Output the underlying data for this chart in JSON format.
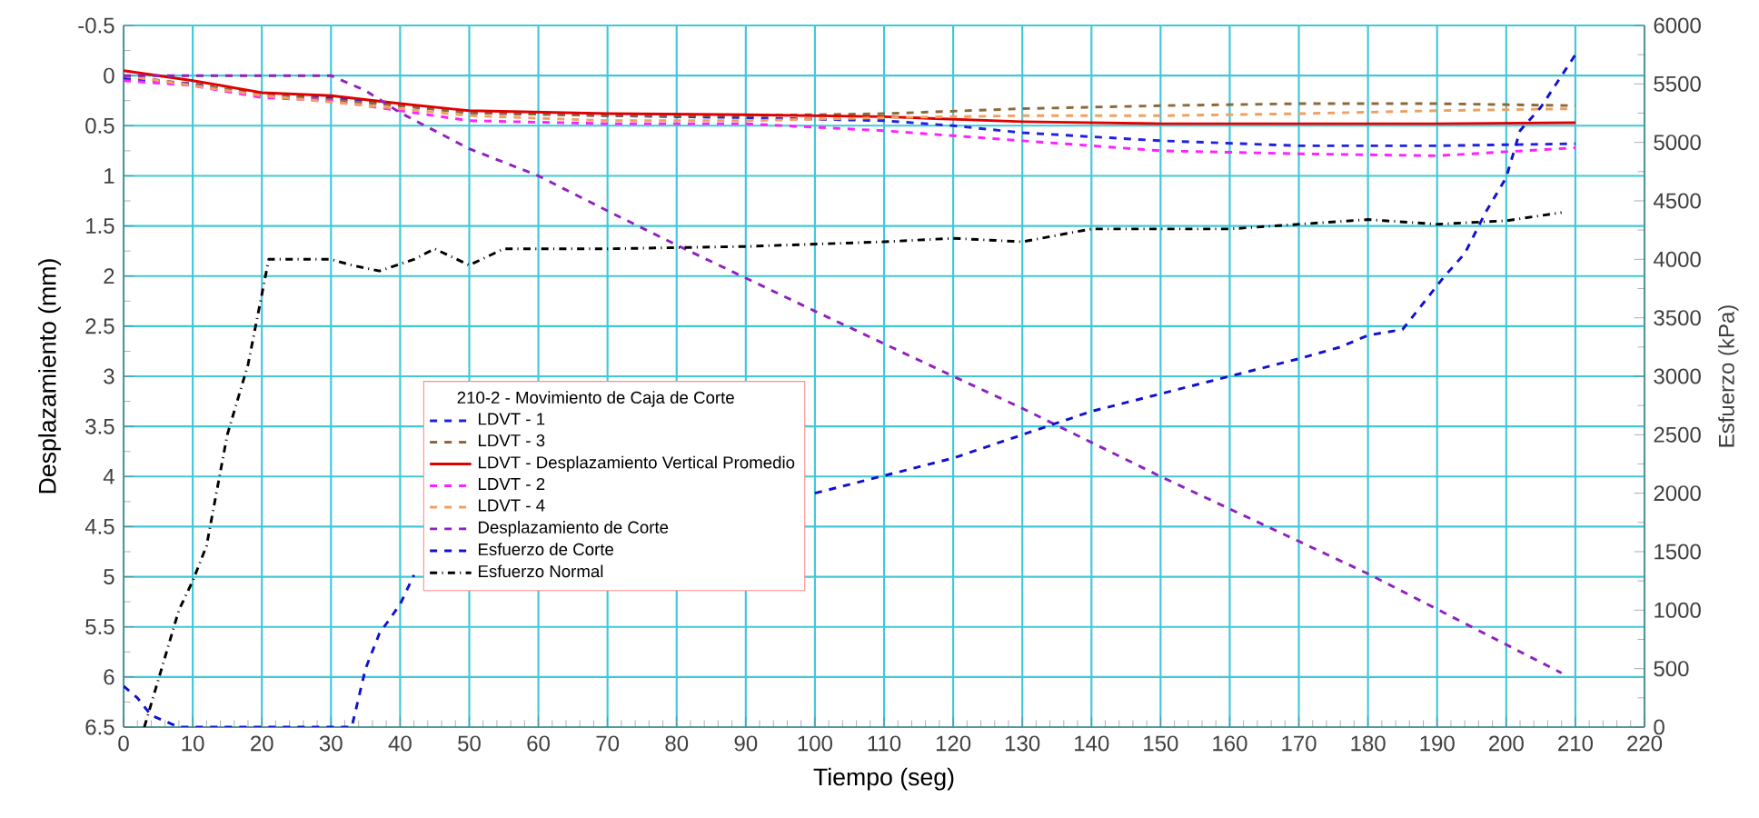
{
  "chart_data": {
    "type": "line",
    "legend_title": "210-2 - Movimiento de Caja de Corte",
    "xlabel": "Tiempo (seg)",
    "ylabel": "Desplazamiento (mm)",
    "y2label": "Esfuerzo (kPa)",
    "xlim": [
      0,
      220
    ],
    "xticks": [
      0,
      10,
      20,
      30,
      40,
      50,
      60,
      70,
      80,
      90,
      100,
      110,
      120,
      130,
      140,
      150,
      160,
      170,
      180,
      190,
      200,
      210,
      220
    ],
    "ylim": [
      6.5,
      -0.5
    ],
    "yticks": [
      -0.5,
      0,
      0.5,
      1,
      1.5,
      2,
      2.5,
      3,
      3.5,
      4,
      4.5,
      5,
      5.5,
      6,
      6.5
    ],
    "y2lim": [
      0,
      6000
    ],
    "y2ticks": [
      0,
      500,
      1000,
      1500,
      2000,
      2500,
      3000,
      3500,
      4000,
      4500,
      5000,
      5500,
      6000
    ],
    "grid": true,
    "legend": "bottom left",
    "marker": "none",
    "series": [
      {
        "name": "LDVT - 1",
        "color": "#2020e0",
        "line_style": "dashed",
        "x": [
          0,
          10,
          20,
          30,
          40,
          50,
          70,
          90,
          110,
          120,
          130,
          150,
          170,
          190,
          210
        ],
        "values": [
          0.03,
          0.08,
          0.2,
          0.22,
          0.3,
          0.37,
          0.4,
          0.42,
          0.45,
          0.5,
          0.57,
          0.65,
          0.7,
          0.7,
          0.68
        ]
      },
      {
        "name": "LDVT - 3",
        "color": "#8b6a3a",
        "line_style": "dashed",
        "x": [
          0,
          20,
          40,
          50,
          70,
          90,
          110,
          130,
          150,
          170,
          190,
          210
        ],
        "values": [
          0,
          0.18,
          0.3,
          0.37,
          0.4,
          0.4,
          0.38,
          0.33,
          0.3,
          0.28,
          0.28,
          0.3
        ]
      },
      {
        "name": "LDVT - Desplazamiento Vertical Promedio",
        "color": "#e00000",
        "line_style": "solid",
        "x": [
          0,
          10,
          20,
          30,
          40,
          50,
          70,
          90,
          110,
          130,
          150,
          170,
          190,
          210
        ],
        "values": [
          -0.05,
          0.05,
          0.17,
          0.2,
          0.28,
          0.35,
          0.38,
          0.39,
          0.41,
          0.46,
          0.48,
          0.48,
          0.48,
          0.47
        ]
      },
      {
        "name": "LDVT - 2",
        "color": "#ff20ff",
        "line_style": "dashed",
        "x": [
          0,
          10,
          20,
          30,
          40,
          50,
          70,
          90,
          110,
          130,
          150,
          170,
          190,
          210
        ],
        "values": [
          0.05,
          0.1,
          0.22,
          0.25,
          0.35,
          0.45,
          0.48,
          0.48,
          0.55,
          0.65,
          0.75,
          0.78,
          0.8,
          0.72
        ]
      },
      {
        "name": "LDVT - 4",
        "color": "#f0a060",
        "line_style": "dashed",
        "x": [
          0,
          20,
          40,
          50,
          70,
          90,
          110,
          130,
          150,
          170,
          190,
          210
        ],
        "values": [
          0,
          0.2,
          0.33,
          0.4,
          0.45,
          0.45,
          0.42,
          0.4,
          0.4,
          0.38,
          0.35,
          0.33
        ]
      },
      {
        "name": "Desplazamiento de Corte",
        "color": "#9020c0",
        "line_style": "dashed",
        "x": [
          0,
          30,
          35,
          40,
          50,
          60,
          70,
          80,
          100,
          120,
          130,
          150,
          180,
          208
        ],
        "values": [
          0,
          0,
          0.15,
          0.37,
          0.73,
          1.0,
          1.35,
          1.69,
          2.35,
          3.0,
          3.32,
          4.0,
          4.97,
          5.96
        ]
      },
      {
        "name": "Esfuerzo de Corte",
        "color": "#1010d0",
        "line_style": "dashed",
        "axis": "y2",
        "x": [
          0,
          2,
          4,
          8,
          15,
          20,
          25,
          30,
          33,
          35,
          37,
          40,
          42,
          70,
          100,
          110,
          120,
          130,
          140,
          150,
          160,
          170,
          176,
          180,
          185,
          189,
          191,
          194,
          197,
          200,
          202,
          205,
          210
        ],
        "values": [
          350,
          250,
          100,
          0,
          0,
          0,
          0,
          0,
          0,
          500,
          800,
          1050,
          1300,
          null,
          2000,
          2150,
          2300,
          2500,
          2700,
          2850,
          3000,
          3150,
          3250,
          3350,
          3400,
          3700,
          3850,
          4050,
          4400,
          4700,
          5100,
          5300,
          5750
        ]
      },
      {
        "name": "Esfuerzo Normal",
        "color": "#000000",
        "line_style": "dotted",
        "axis": "y2",
        "x": [
          3,
          6,
          8,
          10,
          12,
          15,
          18,
          20,
          21,
          25,
          30,
          33,
          37,
          42,
          45,
          50,
          55,
          70,
          90,
          110,
          120,
          130,
          140,
          160,
          180,
          190,
          200,
          208
        ],
        "values": [
          0,
          600,
          1000,
          1250,
          1550,
          2500,
          3100,
          3700,
          4000,
          4000,
          4000,
          3950,
          3900,
          4000,
          4090,
          3950,
          4090,
          4090,
          4110,
          4150,
          4180,
          4150,
          4260,
          4260,
          4340,
          4300,
          4330,
          4400
        ]
      }
    ]
  }
}
